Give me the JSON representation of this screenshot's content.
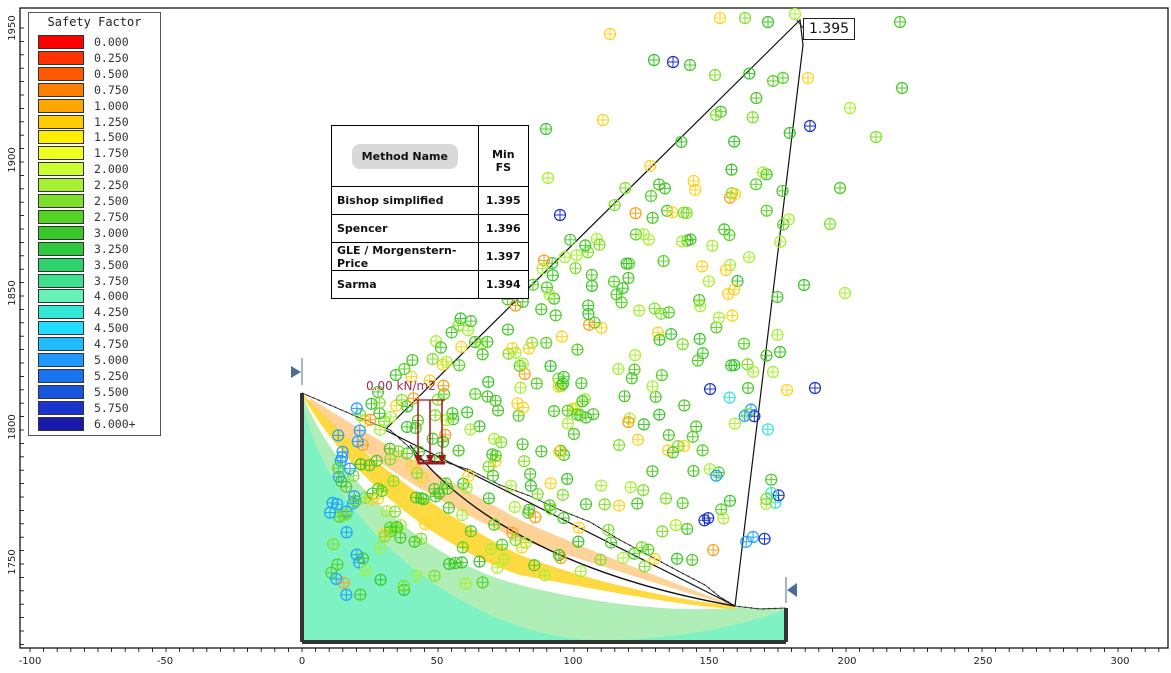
{
  "legend": {
    "title": "Safety Factor",
    "items": [
      {
        "label": "0.000",
        "color": "#ff0000"
      },
      {
        "label": "0.250",
        "color": "#ff3300"
      },
      {
        "label": "0.500",
        "color": "#ff5a00"
      },
      {
        "label": "0.750",
        "color": "#ff8000"
      },
      {
        "label": "1.000",
        "color": "#ffa600"
      },
      {
        "label": "1.250",
        "color": "#ffcc00"
      },
      {
        "label": "1.500",
        "color": "#ffee00"
      },
      {
        "label": "1.750",
        "color": "#eeff22"
      },
      {
        "label": "2.000",
        "color": "#ccff33"
      },
      {
        "label": "2.250",
        "color": "#a8f032"
      },
      {
        "label": "2.500",
        "color": "#7fe02a"
      },
      {
        "label": "2.750",
        "color": "#55d324"
      },
      {
        "label": "3.000",
        "color": "#38c82a"
      },
      {
        "label": "3.250",
        "color": "#2ec840"
      },
      {
        "label": "3.500",
        "color": "#2ed26a"
      },
      {
        "label": "3.750",
        "color": "#3ee08e"
      },
      {
        "label": "4.000",
        "color": "#66f2b6"
      },
      {
        "label": "4.250",
        "color": "#33e6d6"
      },
      {
        "label": "4.500",
        "color": "#22ddff"
      },
      {
        "label": "4.750",
        "color": "#22bbff"
      },
      {
        "label": "5.000",
        "color": "#1f99ff"
      },
      {
        "label": "5.250",
        "color": "#1a73ee"
      },
      {
        "label": "5.500",
        "color": "#1a55dd"
      },
      {
        "label": "5.750",
        "color": "#1a33cc"
      },
      {
        "label": "6.000+",
        "color": "#1a1aaa"
      }
    ]
  },
  "results_table": {
    "header_method": "Method Name",
    "header_fs": "Min FS",
    "rows": [
      {
        "method": "Bishop simplified",
        "fs": "1.395"
      },
      {
        "method": "Spencer",
        "fs": "1.396"
      },
      {
        "method": "GLE / Morgenstern-Price",
        "fs": "1.397"
      },
      {
        "method": "Sarma",
        "fs": "1.394"
      }
    ]
  },
  "callout": {
    "text": "1.395"
  },
  "load_label": "0.00 kN/m2",
  "axes": {
    "x_ticks": [
      "-100",
      "-50",
      "0",
      "50",
      "100",
      "150",
      "200",
      "250",
      "300"
    ],
    "y_ticks": [
      "1950",
      "1900",
      "1850",
      "1800",
      "1750"
    ]
  },
  "colors": {
    "slope_fill": "#7ef2c2",
    "grid_low_fs": "#ffd21f",
    "grid_mid_fs": "#4cc92a",
    "grid_high_fs": "#22a0ff",
    "boundary": "#333333"
  }
}
